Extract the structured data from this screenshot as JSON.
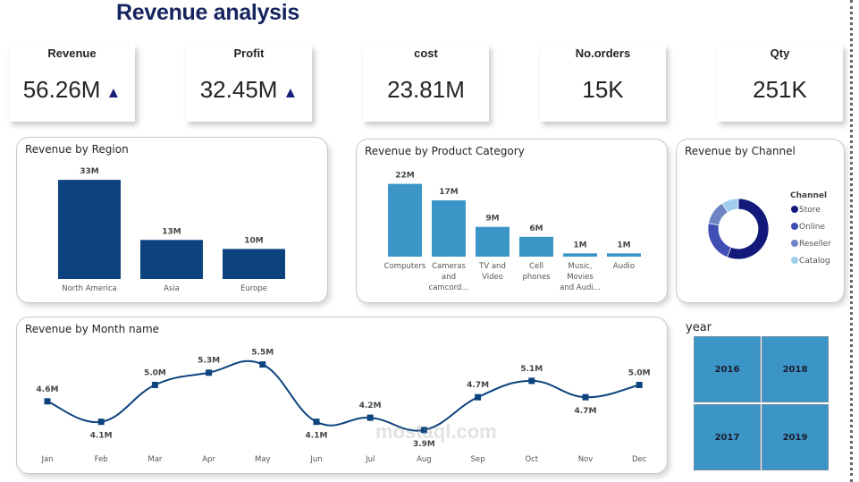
{
  "header": {
    "title": "Revenue analysis"
  },
  "kpis": [
    {
      "label": "Revenue",
      "value": "56.26M",
      "trend": "up"
    },
    {
      "label": "Profit",
      "value": "32.45M",
      "trend": "up"
    },
    {
      "label": "cost",
      "value": "23.81M"
    },
    {
      "label": "No.orders",
      "value": "15K"
    },
    {
      "label": "Qty",
      "value": "251K"
    }
  ],
  "trend_symbol": "▲",
  "colors": {
    "region_bar": "#0c437e",
    "category_bar": "#3b95c6",
    "line": "#0c437e",
    "title": "#15245e",
    "tile": "#3b95c6"
  },
  "chart_data": [
    {
      "type": "bar",
      "title": "Revenue by Region",
      "categories": [
        "North America",
        "Asia",
        "Europe"
      ],
      "values": [
        33,
        13,
        10
      ],
      "labels": [
        "33M",
        "13M",
        "10M"
      ],
      "unit": "M"
    },
    {
      "type": "bar",
      "title": "Revenue by Product Category",
      "categories": [
        [
          "Computers"
        ],
        [
          "Cameras",
          "and",
          "camcord..."
        ],
        [
          "TV and",
          "Video"
        ],
        [
          "Cell",
          "phones"
        ],
        [
          "Music,",
          "Movies",
          "and Audi..."
        ],
        [
          "Audio"
        ]
      ],
      "values": [
        22,
        17,
        9,
        6,
        1,
        1
      ],
      "labels": [
        "22M",
        "17M",
        "9M",
        "6M",
        "1M",
        "1M"
      ],
      "unit": "M"
    },
    {
      "type": "pie",
      "title": "Revenue by Channel",
      "legend_title": "Channel",
      "legend_placement": "right",
      "categories": [
        "Store",
        "Online",
        "Reseller",
        "Catalog"
      ],
      "values": [
        56,
        22,
        13,
        9
      ],
      "colors": [
        "#12197a",
        "#3f4fb5",
        "#6f84c4",
        "#a0cdee"
      ]
    },
    {
      "type": "line",
      "title": "Revenue by Month name",
      "categories": [
        "Jan",
        "Feb",
        "Mar",
        "Apr",
        "May",
        "Jun",
        "Jul",
        "Aug",
        "Sep",
        "Oct",
        "Nov",
        "Dec"
      ],
      "values": [
        4.6,
        4.1,
        5.0,
        5.3,
        5.5,
        4.1,
        4.2,
        3.9,
        4.7,
        5.1,
        4.7,
        5.0
      ],
      "labels": [
        "4.6M",
        "4.1M",
        "5.0M",
        "5.3M",
        "5.5M",
        "4.1M",
        "4.2M",
        "3.9M",
        "4.7M",
        "5.1M",
        "4.7M",
        "5.0M"
      ],
      "unit": "M"
    }
  ],
  "year_slicer": {
    "label": "year",
    "options": [
      "2016",
      "2018",
      "2017",
      "2019"
    ]
  },
  "watermark": "mostaql.com"
}
